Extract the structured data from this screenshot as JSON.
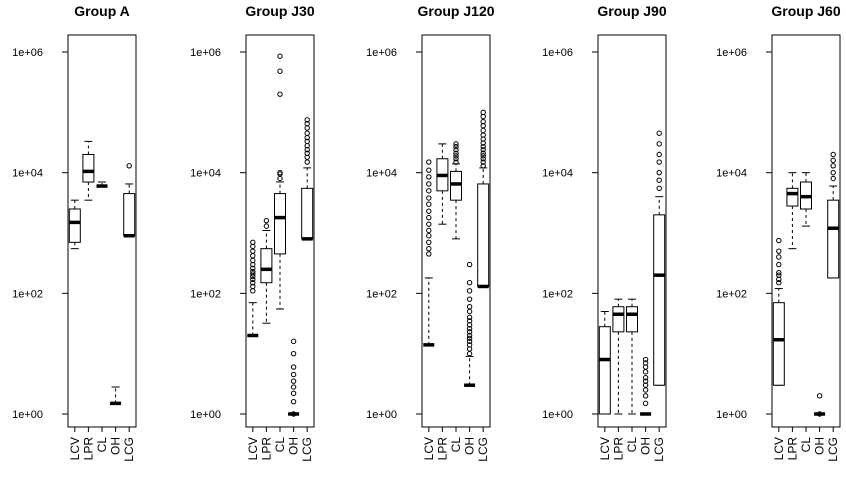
{
  "chart_data": [
    {
      "type": "box",
      "title": "Group A",
      "categories": [
        "LCV",
        "LPR",
        "CL",
        "OH",
        "LCG"
      ],
      "yscale": "log",
      "ylim": [
        1,
        1000000
      ],
      "yticks": [
        "1e+00",
        "1e+02",
        "1e+04",
        "1e+06"
      ],
      "boxes": [
        {
          "category": "LCV",
          "lower_whisker": 550,
          "q1": 700,
          "median": 1500,
          "q3": 2500,
          "upper_whisker": 3500,
          "outliers": []
        },
        {
          "category": "LPR",
          "lower_whisker": 3500,
          "q1": 7000,
          "median": 10500,
          "q3": 20000,
          "upper_whisker": 33000,
          "outliers": []
        },
        {
          "category": "CL",
          "lower_whisker": 6000,
          "q1": 6000,
          "median": 6000,
          "q3": 6000,
          "upper_whisker": 7000,
          "outliers": []
        },
        {
          "category": "OH",
          "lower_whisker": 1.5,
          "q1": 1.5,
          "median": 1.5,
          "q3": 1.5,
          "upper_whisker": 2.8,
          "outliers": []
        },
        {
          "category": "LCG",
          "lower_whisker": 900,
          "q1": 900,
          "median": 900,
          "q3": 4500,
          "upper_whisker": 6500,
          "outliers": [
            13000
          ]
        }
      ]
    },
    {
      "type": "box",
      "title": "Group J30",
      "categories": [
        "LCV",
        "LPR",
        "CL",
        "OH",
        "LCG"
      ],
      "yscale": "log",
      "ylim": [
        1,
        1000000
      ],
      "yticks": [
        "1e+00",
        "1e+02",
        "1e+04",
        "1e+06"
      ],
      "boxes": [
        {
          "category": "LCV",
          "lower_whisker": 20,
          "q1": 20,
          "median": 20,
          "q3": 20,
          "upper_whisker": 70,
          "outliers": [
            110,
            130,
            150,
            170,
            190,
            210,
            230,
            260,
            300,
            350,
            420,
            500,
            600,
            700
          ]
        },
        {
          "category": "LPR",
          "lower_whisker": 32,
          "q1": 150,
          "median": 250,
          "q3": 550,
          "upper_whisker": 1100,
          "outliers": [
            1300,
            1600
          ]
        },
        {
          "category": "CL",
          "lower_whisker": 55,
          "q1": 450,
          "median": 1800,
          "q3": 4500,
          "upper_whisker": 7000,
          "outliers": [
            8000,
            9500,
            10000,
            200000,
            480000,
            850000
          ]
        },
        {
          "category": "OH",
          "lower_whisker": 1,
          "q1": 1,
          "median": 1,
          "q3": 1,
          "upper_whisker": 1,
          "outliers": [
            1,
            1.6,
            2.2,
            2.8,
            3.5,
            4.5,
            6,
            10,
            16
          ]
        },
        {
          "category": "LCG",
          "lower_whisker": 800,
          "q1": 800,
          "median": 800,
          "q3": 5500,
          "upper_whisker": 12000,
          "outliers": [
            15000,
            18000,
            21000,
            24000,
            28000,
            33000,
            38000,
            45000,
            55000,
            65000,
            75000
          ]
        }
      ]
    },
    {
      "type": "box",
      "title": "Group J120",
      "categories": [
        "LCV",
        "LPR",
        "CL",
        "OH",
        "LCG"
      ],
      "yscale": "log",
      "ylim": [
        1,
        1000000
      ],
      "yticks": [
        "1e+00",
        "1e+02",
        "1e+04",
        "1e+06"
      ],
      "boxes": [
        {
          "category": "LCV",
          "lower_whisker": 14,
          "q1": 14,
          "median": 14,
          "q3": 14,
          "upper_whisker": 180,
          "outliers": [
            450,
            550,
            700,
            900,
            1100,
            1400,
            1800,
            2300,
            3000,
            3800,
            5000,
            6500,
            8500,
            11000,
            15000
          ]
        },
        {
          "category": "LPR",
          "lower_whisker": 1400,
          "q1": 5000,
          "median": 9000,
          "q3": 17000,
          "upper_whisker": 30000,
          "outliers": []
        },
        {
          "category": "CL",
          "lower_whisker": 800,
          "q1": 3500,
          "median": 6500,
          "q3": 10500,
          "upper_whisker": 14000,
          "outliers": [
            15000,
            17000,
            19000,
            21000,
            24000,
            27000,
            30000
          ]
        },
        {
          "category": "OH",
          "lower_whisker": 3,
          "q1": 3,
          "median": 3,
          "q3": 3,
          "upper_whisker": 9,
          "outliers": [
            10,
            12,
            14,
            16,
            18,
            20,
            23,
            26,
            30,
            35,
            40,
            50,
            60,
            80,
            110,
            150,
            300
          ]
        },
        {
          "category": "LCG",
          "lower_whisker": 130,
          "q1": 130,
          "median": 130,
          "q3": 6500,
          "upper_whisker": 12000,
          "outliers": [
            13000,
            15000,
            17000,
            19000,
            21000,
            24000,
            27000,
            31000,
            36000,
            42000,
            50000,
            60000,
            70000,
            85000,
            100000
          ]
        }
      ]
    },
    {
      "type": "box",
      "title": "Group J90",
      "categories": [
        "LCV",
        "LPR",
        "CL",
        "OH",
        "LCG"
      ],
      "yscale": "log",
      "ylim": [
        1,
        1000000
      ],
      "yticks": [
        "1e+00",
        "1e+02",
        "1e+04",
        "1e+06"
      ],
      "boxes": [
        {
          "category": "LCV",
          "lower_whisker": 1,
          "q1": 1,
          "median": 8,
          "q3": 28,
          "upper_whisker": 50,
          "outliers": []
        },
        {
          "category": "LPR",
          "lower_whisker": 1,
          "q1": 23,
          "median": 45,
          "q3": 60,
          "upper_whisker": 80,
          "outliers": []
        },
        {
          "category": "CL",
          "lower_whisker": 1,
          "q1": 23,
          "median": 45,
          "q3": 60,
          "upper_whisker": 80,
          "outliers": []
        },
        {
          "category": "OH",
          "lower_whisker": 1,
          "q1": 1,
          "median": 1,
          "q3": 1,
          "upper_whisker": 1,
          "outliers": [
            1.5,
            2,
            2.5,
            3,
            3.5,
            4,
            5,
            6,
            7,
            8
          ]
        },
        {
          "category": "LCG",
          "lower_whisker": 3,
          "q1": 3,
          "median": 200,
          "q3": 2000,
          "upper_whisker": 4000,
          "outliers": [
            5500,
            7500,
            10000,
            15000,
            20000,
            30000,
            45000
          ]
        }
      ]
    },
    {
      "type": "box",
      "title": "Group J60",
      "categories": [
        "LCV",
        "LPR",
        "CL",
        "OH",
        "LCG"
      ],
      "yscale": "log",
      "ylim": [
        1,
        1000000
      ],
      "yticks": [
        "1e+00",
        "1e+02",
        "1e+04",
        "1e+06"
      ],
      "boxes": [
        {
          "category": "LCV",
          "lower_whisker": 3,
          "q1": 3,
          "median": 17,
          "q3": 70,
          "upper_whisker": 120,
          "outliers": [
            150,
            170,
            200,
            220,
            300,
            400,
            500,
            750
          ]
        },
        {
          "category": "LPR",
          "lower_whisker": 550,
          "q1": 2800,
          "median": 4500,
          "q3": 5500,
          "upper_whisker": 10000,
          "outliers": []
        },
        {
          "category": "CL",
          "lower_whisker": 1300,
          "q1": 2500,
          "median": 4000,
          "q3": 7000,
          "upper_whisker": 10000,
          "outliers": []
        },
        {
          "category": "OH",
          "lower_whisker": 1,
          "q1": 1,
          "median": 1,
          "q3": 1,
          "upper_whisker": 1,
          "outliers": [
            1,
            2
          ]
        },
        {
          "category": "LCG",
          "lower_whisker": 180,
          "q1": 180,
          "median": 1200,
          "q3": 3500,
          "upper_whisker": 6000,
          "outliers": [
            8000,
            10000,
            13000,
            16000,
            20000
          ]
        }
      ]
    }
  ]
}
